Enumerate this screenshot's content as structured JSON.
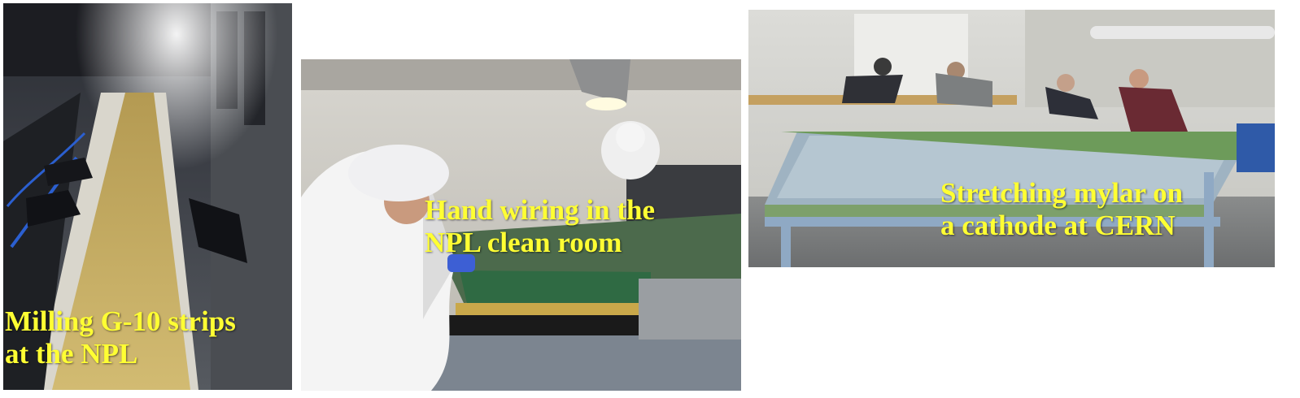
{
  "panels": [
    {
      "caption": [
        "Milling G-10 strips",
        "at the NPL"
      ]
    },
    {
      "caption": [
        "Hand wiring in the",
        "NPL clean room"
      ]
    },
    {
      "caption": [
        "Stretching mylar on",
        "a cathode at CERN"
      ]
    }
  ],
  "colors": {
    "caption": "#ffff33"
  }
}
